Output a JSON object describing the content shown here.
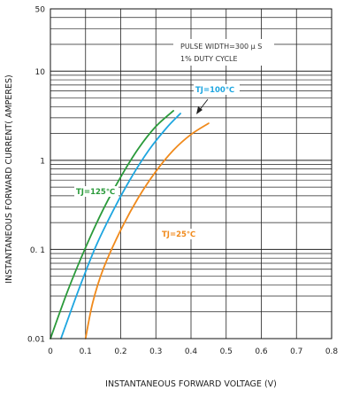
{
  "chart_data": {
    "type": "line",
    "title": "",
    "xlabel": "INSTANTANEOUS FORWARD VOLTAGE (V)",
    "ylabel": "INSTANTANEOUS FORWARD CURRENT( AMPERES)",
    "x_scale": "linear",
    "y_scale": "log",
    "xlim": [
      0,
      0.8
    ],
    "ylim": [
      0.01,
      50
    ],
    "x_ticks": [
      0,
      0.1,
      0.2,
      0.3,
      0.4,
      0.5,
      0.6,
      0.7,
      0.8
    ],
    "x_tick_labels": [
      "0",
      "0.1",
      "0.2",
      "0.3",
      "0.4",
      "0.5",
      "0.6",
      "0.7",
      "0.8"
    ],
    "y_ticks": [
      0.01,
      0.1,
      1,
      10,
      50
    ],
    "y_tick_labels": [
      "0.01",
      "0. 1",
      "1",
      "10",
      "50"
    ],
    "grid": true,
    "annotations": [
      "PULSE WIDTH=300 μ S",
      "1% DUTY CYCLE"
    ],
    "series": [
      {
        "name": "TJ=125℃",
        "color": "#2a9a3a",
        "x": [
          0.0,
          0.05,
          0.1,
          0.15,
          0.2,
          0.25,
          0.3,
          0.35
        ],
        "y": [
          0.01,
          0.035,
          0.105,
          0.28,
          0.65,
          1.35,
          2.4,
          3.6
        ]
      },
      {
        "name": "TJ=100℃",
        "color": "#1ea6e0",
        "x": [
          0.03,
          0.08,
          0.13,
          0.18,
          0.23,
          0.28,
          0.33,
          0.37
        ],
        "y": [
          0.01,
          0.035,
          0.11,
          0.28,
          0.64,
          1.3,
          2.3,
          3.35
        ]
      },
      {
        "name": "TJ=25℃",
        "color": "#f08a1c",
        "x": [
          0.1,
          0.12,
          0.15,
          0.2,
          0.25,
          0.3,
          0.35,
          0.4,
          0.45
        ],
        "y": [
          0.01,
          0.025,
          0.06,
          0.165,
          0.38,
          0.75,
          1.3,
          1.95,
          2.6
        ]
      }
    ]
  }
}
